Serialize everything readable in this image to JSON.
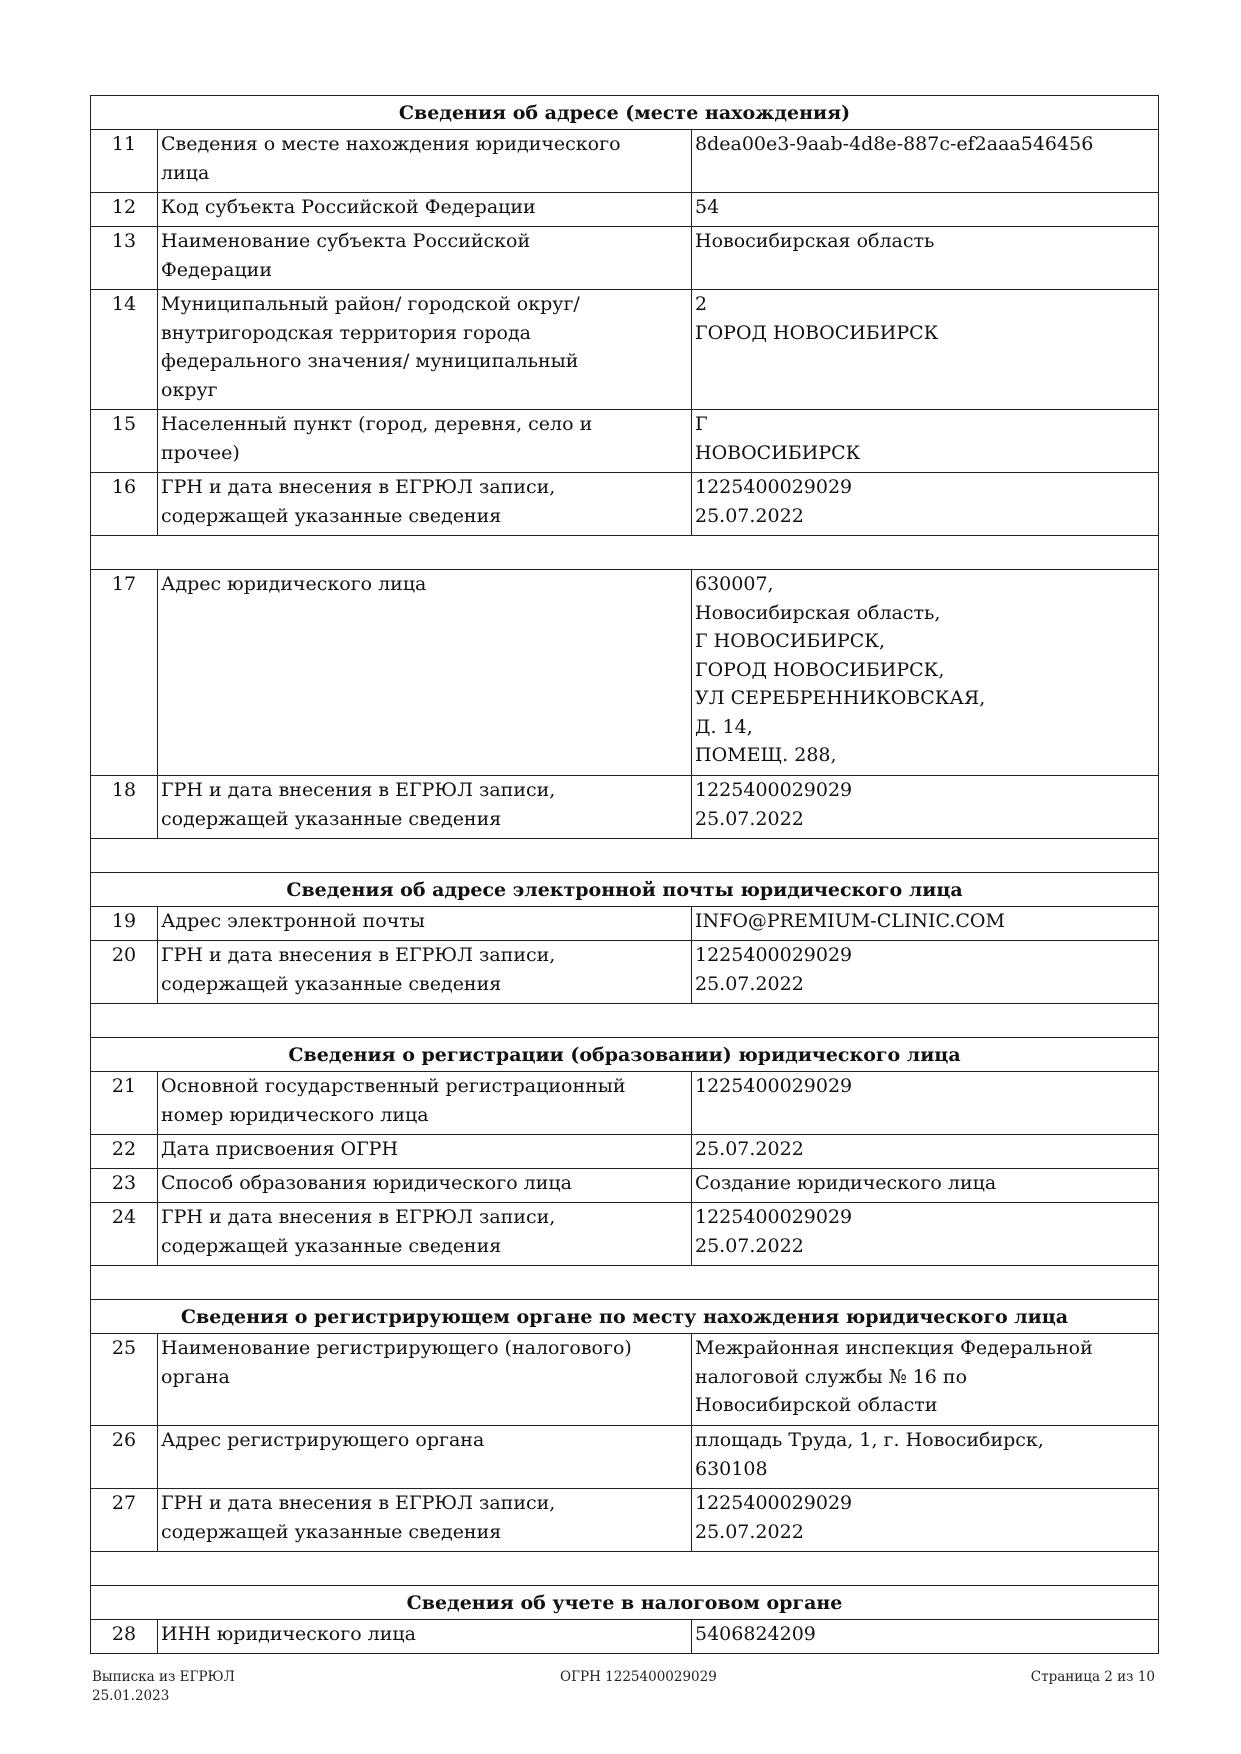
{
  "rows": [
    {
      "type": "section",
      "title": "Сведения об адресе (месте нахождения)"
    },
    {
      "type": "data",
      "num": "11",
      "label": [
        "Сведения о месте нахождения юридического",
        "лица"
      ],
      "value": [
        "8dea00e3-9aab-4d8e-887c-ef2aaa546456"
      ]
    },
    {
      "type": "data",
      "num": "12",
      "label": [
        "Код субъекта Российской Федерации"
      ],
      "value": [
        "54"
      ]
    },
    {
      "type": "data",
      "num": "13",
      "label": [
        "Наименование субъекта Российской",
        "Федерации"
      ],
      "value": [
        "Новосибирская область"
      ]
    },
    {
      "type": "data",
      "num": "14",
      "label": [
        "Муниципальный район/ городской округ/",
        "внутригородская территория города",
        "федерального значения/ муниципальный",
        "округ"
      ],
      "value": [
        "2",
        "ГОРОД НОВОСИБИРСК"
      ]
    },
    {
      "type": "data",
      "num": "15",
      "label": [
        "Населенный пункт (город, деревня, село и",
        "прочее)"
      ],
      "value": [
        "Г",
        "НОВОСИБИРСК"
      ]
    },
    {
      "type": "data",
      "num": "16",
      "label": [
        "ГРН и дата внесения в ЕГРЮЛ записи,",
        "содержащей указанные сведения"
      ],
      "value": [
        "1225400029029",
        "25.07.2022"
      ]
    },
    {
      "type": "blank"
    },
    {
      "type": "data",
      "num": "17",
      "label": [
        "Адрес юридического лица"
      ],
      "value": [
        "630007,",
        "Новосибирская область,",
        "Г НОВОСИБИРСК,",
        "ГОРОД НОВОСИБИРСК,",
        "УЛ СЕРЕБРЕННИКОВСКАЯ,",
        "Д. 14,",
        "ПОМЕЩ. 288,"
      ]
    },
    {
      "type": "data",
      "num": "18",
      "label": [
        "ГРН и дата внесения в ЕГРЮЛ записи,",
        "содержащей указанные сведения"
      ],
      "value": [
        "1225400029029",
        "25.07.2022"
      ]
    },
    {
      "type": "blank"
    },
    {
      "type": "section",
      "title": "Сведения об адресе электронной почты юридического лица"
    },
    {
      "type": "data",
      "num": "19",
      "label": [
        "Адрес электронной почты"
      ],
      "value": [
        "INFO@PREMIUM-CLINIC.COM"
      ]
    },
    {
      "type": "data",
      "num": "20",
      "label": [
        "ГРН и дата внесения в ЕГРЮЛ записи,",
        "содержащей указанные сведения"
      ],
      "value": [
        "1225400029029",
        "25.07.2022"
      ]
    },
    {
      "type": "blank"
    },
    {
      "type": "section",
      "title": "Сведения о регистрации (образовании) юридического лица"
    },
    {
      "type": "data",
      "num": "21",
      "label": [
        "Основной государственный регистрационный",
        "номер юридического лица"
      ],
      "value": [
        "1225400029029"
      ]
    },
    {
      "type": "data",
      "num": "22",
      "label": [
        "Дата присвоения ОГРН"
      ],
      "value": [
        "25.07.2022"
      ]
    },
    {
      "type": "data",
      "num": "23",
      "label": [
        "Способ образования юридического лица"
      ],
      "value": [
        "Создание юридического лица"
      ]
    },
    {
      "type": "data",
      "num": "24",
      "label": [
        "ГРН и дата внесения в ЕГРЮЛ записи,",
        "содержащей указанные сведения"
      ],
      "value": [
        "1225400029029",
        "25.07.2022"
      ]
    },
    {
      "type": "blank"
    },
    {
      "type": "section",
      "title": "Сведения о регистрирующем органе по месту нахождения юридического лица"
    },
    {
      "type": "data",
      "num": "25",
      "label": [
        "Наименование регистрирующего (налогового)",
        "органа"
      ],
      "value": [
        "Межрайонная инспекция Федеральной",
        "налоговой службы № 16 по",
        "Новосибирской области"
      ]
    },
    {
      "type": "data",
      "num": "26",
      "label": [
        "Адрес регистрирующего органа"
      ],
      "value": [
        "площадь Труда, 1, г. Новосибирск,",
        "630108"
      ]
    },
    {
      "type": "data",
      "num": "27",
      "label": [
        "ГРН и дата внесения в ЕГРЮЛ записи,",
        "содержащей указанные сведения"
      ],
      "value": [
        "1225400029029",
        "25.07.2022"
      ]
    },
    {
      "type": "blank"
    },
    {
      "type": "section",
      "title": "Сведения об учете в налоговом органе"
    },
    {
      "type": "data",
      "num": "28",
      "label": [
        "ИНН юридического лица"
      ],
      "value": [
        "5406824209"
      ]
    }
  ],
  "footer": {
    "left_line1": "Выписка из ЕГРЮЛ",
    "left_line2": "25.01.2023",
    "center": "ОГРН 1225400029029",
    "right": "Страница 2 из 10"
  }
}
